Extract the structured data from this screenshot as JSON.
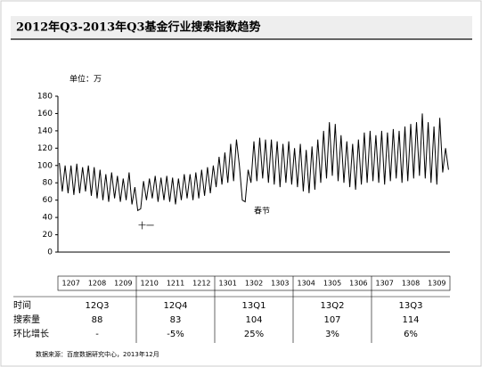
{
  "chart_data": {
    "type": "line",
    "title": "2012年Q3-2013年Q3基金行业搜索指数趋势",
    "unit_label": "单位：万",
    "annotations": [
      "十一",
      "春节"
    ],
    "months": [
      "1207",
      "1208",
      "1209",
      "1210",
      "1211",
      "1212",
      "1301",
      "1302",
      "1303",
      "1304",
      "1305",
      "1306",
      "1307",
      "1308",
      "1309"
    ],
    "series": [
      {
        "color": "#000000",
        "values": [
          103,
          70,
          100,
          68,
          100,
          66,
          102,
          68,
          98,
          70,
          100,
          65,
          98,
          62,
          95,
          60,
          90,
          58,
          92,
          62,
          88,
          58,
          85,
          60,
          92,
          55,
          75,
          48,
          50,
          82,
          60,
          85,
          62,
          88,
          58,
          86,
          60,
          88,
          58,
          86,
          55,
          85,
          60,
          90,
          62,
          90,
          60,
          92,
          62,
          95,
          65,
          98,
          68,
          100,
          75,
          110,
          78,
          115,
          80,
          125,
          82,
          130,
          100,
          60,
          58,
          95,
          80,
          128,
          82,
          132,
          85,
          130,
          80,
          130,
          78,
          128,
          75,
          125,
          80,
          128,
          78,
          120,
          75,
          125,
          70,
          118,
          68,
          122,
          72,
          130,
          80,
          140,
          85,
          150,
          88,
          148,
          82,
          135,
          80,
          128,
          75,
          125,
          72,
          130,
          78,
          138,
          80,
          140,
          82,
          135,
          80,
          140,
          78,
          138,
          82,
          142,
          85,
          140,
          80,
          145,
          82,
          148,
          85,
          150,
          88,
          160,
          85,
          150,
          80,
          145,
          78,
          155,
          92,
          120,
          95
        ]
      }
    ],
    "ylim": [
      0,
      180
    ],
    "yticks": [
      0,
      20,
      40,
      60,
      80,
      100,
      120,
      140,
      160,
      180
    ]
  },
  "table": {
    "header": [
      "时间",
      "12Q3",
      "12Q4",
      "13Q1",
      "13Q2",
      "13Q3"
    ],
    "rows": [
      [
        "搜索量",
        88,
        83,
        104,
        107,
        114
      ],
      [
        "环比增长",
        "-",
        "-5%",
        "25%",
        "3%",
        "6%"
      ]
    ]
  },
  "source": "数据来源：百度数据研究中心，2013年12月"
}
